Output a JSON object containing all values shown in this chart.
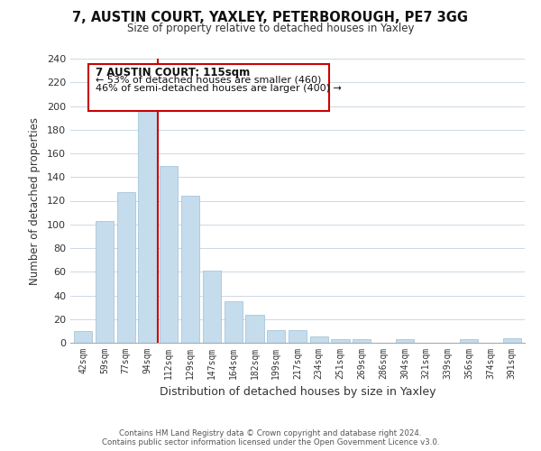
{
  "title": "7, AUSTIN COURT, YAXLEY, PETERBOROUGH, PE7 3GG",
  "subtitle": "Size of property relative to detached houses in Yaxley",
  "xlabel": "Distribution of detached houses by size in Yaxley",
  "ylabel": "Number of detached properties",
  "bar_labels": [
    "42sqm",
    "59sqm",
    "77sqm",
    "94sqm",
    "112sqm",
    "129sqm",
    "147sqm",
    "164sqm",
    "182sqm",
    "199sqm",
    "217sqm",
    "234sqm",
    "251sqm",
    "269sqm",
    "286sqm",
    "304sqm",
    "321sqm",
    "339sqm",
    "356sqm",
    "374sqm",
    "391sqm"
  ],
  "bar_values": [
    10,
    103,
    127,
    199,
    149,
    124,
    61,
    35,
    24,
    11,
    11,
    5,
    3,
    3,
    0,
    3,
    0,
    0,
    3,
    0,
    4
  ],
  "bar_color": "#c5dced",
  "bar_edge_color": "#9bbfd6",
  "highlight_line_color": "#cc0000",
  "annotation_title": "7 AUSTIN COURT: 115sqm",
  "annotation_line1": "← 53% of detached houses are smaller (460)",
  "annotation_line2": "46% of semi-detached houses are larger (400) →",
  "footer_line1": "Contains HM Land Registry data © Crown copyright and database right 2024.",
  "footer_line2": "Contains public sector information licensed under the Open Government Licence v3.0.",
  "ylim": [
    0,
    240
  ],
  "yticks": [
    0,
    20,
    40,
    60,
    80,
    100,
    120,
    140,
    160,
    180,
    200,
    220,
    240
  ],
  "background_color": "#ffffff",
  "grid_color": "#cdd9e5"
}
